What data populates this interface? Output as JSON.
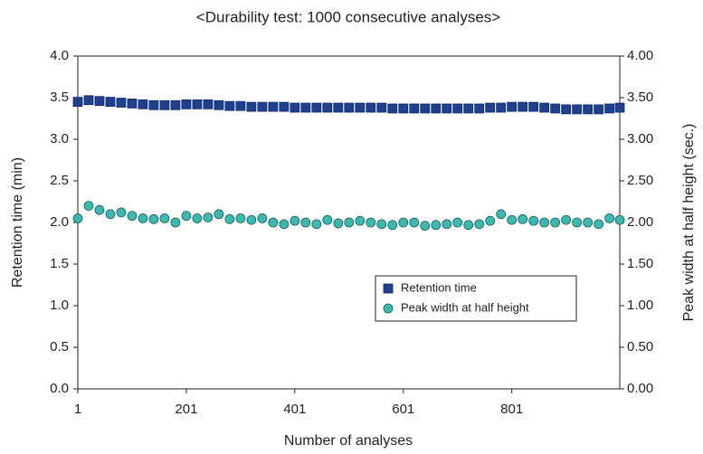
{
  "chart_data": {
    "type": "scatter",
    "title": "<Durability test: 1000 consecutive analyses>",
    "x_label": "Number of analyses",
    "y_label": "Retention time (min)",
    "y2_label": "Peak width at half height (sec.)",
    "x": [
      1,
      21,
      41,
      61,
      81,
      101,
      121,
      141,
      161,
      181,
      201,
      221,
      241,
      261,
      281,
      301,
      321,
      341,
      361,
      381,
      401,
      421,
      441,
      461,
      481,
      501,
      521,
      541,
      561,
      581,
      601,
      621,
      641,
      661,
      681,
      701,
      721,
      741,
      761,
      781,
      801,
      821,
      841,
      861,
      881,
      901,
      921,
      941,
      961,
      981,
      1000
    ],
    "xlim": [
      1,
      1000
    ],
    "xticks": [
      1,
      201,
      401,
      601,
      801
    ],
    "ylim": [
      0,
      4
    ],
    "yticks": [
      {
        "value": 0,
        "label": "0.0"
      },
      0.5,
      {
        "value": 1,
        "label": "1.0"
      },
      1.5,
      {
        "value": 2,
        "label": "2.0"
      },
      2.5,
      {
        "value": 3,
        "label": "3.0"
      },
      3.5,
      {
        "value": 4,
        "label": "4.0"
      }
    ],
    "y2lim": [
      0,
      4
    ],
    "y2ticks": [
      {
        "value": 0,
        "label": "0.00"
      },
      {
        "value": 0.5,
        "label": "0.50"
      },
      {
        "value": 1,
        "label": "1.00"
      },
      {
        "value": 1.5,
        "label": "1.50"
      },
      {
        "value": 2,
        "label": "2.00"
      },
      {
        "value": 2.5,
        "label": "2.50"
      },
      {
        "value": 3,
        "label": "3.00"
      },
      {
        "value": 3.5,
        "label": "3.50"
      },
      {
        "value": 4,
        "label": "4.00"
      }
    ],
    "legend_position": "right",
    "series": [
      {
        "name": "Retention time",
        "color": "#1f3f8f",
        "marker": "square",
        "values": [
          3.45,
          3.47,
          3.46,
          3.45,
          3.44,
          3.43,
          3.42,
          3.41,
          3.41,
          3.41,
          3.42,
          3.42,
          3.42,
          3.41,
          3.4,
          3.4,
          3.39,
          3.39,
          3.39,
          3.39,
          3.38,
          3.38,
          3.38,
          3.38,
          3.38,
          3.38,
          3.38,
          3.38,
          3.38,
          3.37,
          3.37,
          3.37,
          3.37,
          3.37,
          3.37,
          3.37,
          3.37,
          3.37,
          3.38,
          3.38,
          3.39,
          3.39,
          3.39,
          3.38,
          3.37,
          3.36,
          3.36,
          3.36,
          3.36,
          3.37,
          3.38
        ]
      },
      {
        "name": "Peak width at half height",
        "color": "#3bb8b0",
        "marker": "circle",
        "axis": "y2",
        "values": [
          2.05,
          2.2,
          2.15,
          2.1,
          2.12,
          2.08,
          2.05,
          2.04,
          2.05,
          2.0,
          2.08,
          2.05,
          2.06,
          2.1,
          2.04,
          2.05,
          2.03,
          2.05,
          2.0,
          1.98,
          2.02,
          2.0,
          1.98,
          2.03,
          1.99,
          2.0,
          2.02,
          2.0,
          1.98,
          1.97,
          2.0,
          2.0,
          1.96,
          1.97,
          1.98,
          2.0,
          1.97,
          1.98,
          2.02,
          2.1,
          2.03,
          2.04,
          2.02,
          2.0,
          2.0,
          2.03,
          2.0,
          2.0,
          1.98,
          2.05,
          2.03
        ]
      }
    ]
  }
}
